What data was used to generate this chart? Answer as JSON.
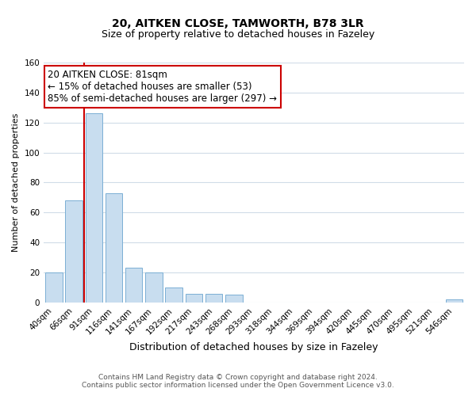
{
  "title": "20, AITKEN CLOSE, TAMWORTH, B78 3LR",
  "subtitle": "Size of property relative to detached houses in Fazeley",
  "xlabel": "Distribution of detached houses by size in Fazeley",
  "ylabel": "Number of detached properties",
  "bin_labels": [
    "40sqm",
    "66sqm",
    "91sqm",
    "116sqm",
    "141sqm",
    "167sqm",
    "192sqm",
    "217sqm",
    "243sqm",
    "268sqm",
    "293sqm",
    "318sqm",
    "344sqm",
    "369sqm",
    "394sqm",
    "420sqm",
    "445sqm",
    "470sqm",
    "495sqm",
    "521sqm",
    "546sqm"
  ],
  "bar_values": [
    20,
    68,
    126,
    73,
    23,
    20,
    10,
    6,
    6,
    5,
    0,
    0,
    0,
    0,
    0,
    0,
    0,
    0,
    0,
    0,
    2
  ],
  "bar_color": "#c8ddef",
  "bar_edge_color": "#7bafd4",
  "vline_color": "#cc0000",
  "vline_bin_index": 2,
  "ylim": [
    0,
    160
  ],
  "yticks": [
    0,
    20,
    40,
    60,
    80,
    100,
    120,
    140,
    160
  ],
  "annotation_title": "20 AITKEN CLOSE: 81sqm",
  "annotation_line1": "← 15% of detached houses are smaller (53)",
  "annotation_line2": "85% of semi-detached houses are larger (297) →",
  "annotation_box_facecolor": "#ffffff",
  "annotation_box_edgecolor": "#cc0000",
  "bg_color": "#ffffff",
  "grid_color": "#d0dce8",
  "footer_line1": "Contains HM Land Registry data © Crown copyright and database right 2024.",
  "footer_line2": "Contains public sector information licensed under the Open Government Licence v3.0.",
  "title_fontsize": 10,
  "subtitle_fontsize": 9,
  "ylabel_fontsize": 8,
  "xlabel_fontsize": 9,
  "tick_fontsize": 7.5,
  "annotation_fontsize": 8.5,
  "footer_fontsize": 6.5
}
